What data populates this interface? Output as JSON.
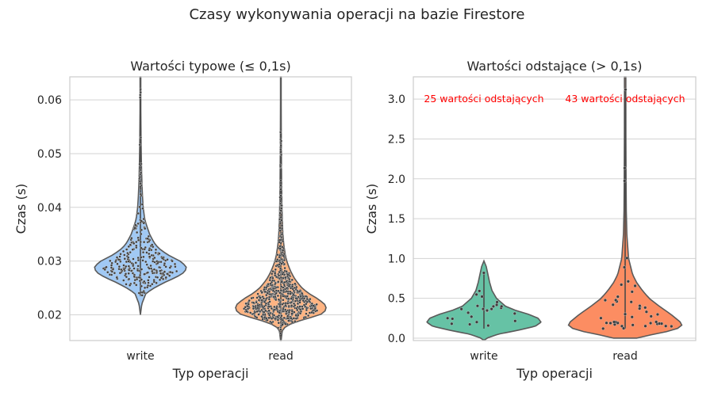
{
  "suptitle": "Czasy wykonywania operacji na bazie Firestore",
  "colors": {
    "write_left": "#a1c9f4",
    "read_left": "#ffb482",
    "write_right": "#66c2a5",
    "read_right": "#fc8d62",
    "points": "#3d3d3d",
    "annotation": "#ff0000",
    "grid": "#d3d3d3",
    "violin_edge": "#5a5a5a"
  },
  "chart_data": [
    {
      "type": "violin",
      "title": "Wartości typowe (≤ 0,1s)",
      "xlabel": "Typ operacji",
      "ylabel": "Czas (s)",
      "categories": [
        "write",
        "read"
      ],
      "ylim": [
        0.0152,
        0.0643
      ],
      "yticks": [
        0.02,
        0.03,
        0.04,
        0.05,
        0.06
      ],
      "ytick_labels": [
        "0.02",
        "0.03",
        "0.04",
        "0.05",
        "0.06"
      ],
      "grid": true,
      "series": [
        {
          "category": "write",
          "n_points": 300,
          "range": [
            0.0235,
            0.062
          ],
          "density": [
            [
              0.02,
              0.0
            ],
            [
              0.022,
              0.03
            ],
            [
              0.024,
              0.12
            ],
            [
              0.025,
              0.3
            ],
            [
              0.026,
              0.52
            ],
            [
              0.027,
              0.78
            ],
            [
              0.028,
              0.97
            ],
            [
              0.029,
              1.0
            ],
            [
              0.03,
              0.86
            ],
            [
              0.031,
              0.63
            ],
            [
              0.032,
              0.45
            ],
            [
              0.033,
              0.33
            ],
            [
              0.034,
              0.26
            ],
            [
              0.035,
              0.2
            ],
            [
              0.036,
              0.16
            ],
            [
              0.037,
              0.12
            ],
            [
              0.038,
              0.09
            ],
            [
              0.04,
              0.06
            ],
            [
              0.042,
              0.045
            ],
            [
              0.044,
              0.035
            ],
            [
              0.046,
              0.028
            ],
            [
              0.048,
              0.022
            ],
            [
              0.05,
              0.018
            ],
            [
              0.052,
              0.014
            ],
            [
              0.055,
              0.011
            ],
            [
              0.058,
              0.008
            ],
            [
              0.0643,
              0.008
            ]
          ]
        },
        {
          "category": "read",
          "n_points": 700,
          "range": [
            0.016,
            0.054
          ],
          "density": [
            [
              0.0152,
              0.006
            ],
            [
              0.017,
              0.03
            ],
            [
              0.018,
              0.12
            ],
            [
              0.019,
              0.45
            ],
            [
              0.02,
              0.86
            ],
            [
              0.021,
              1.0
            ],
            [
              0.022,
              0.95
            ],
            [
              0.023,
              0.8
            ],
            [
              0.024,
              0.6
            ],
            [
              0.025,
              0.46
            ],
            [
              0.026,
              0.36
            ],
            [
              0.027,
              0.28
            ],
            [
              0.028,
              0.22
            ],
            [
              0.029,
              0.17
            ],
            [
              0.03,
              0.13
            ],
            [
              0.031,
              0.1
            ],
            [
              0.033,
              0.065
            ],
            [
              0.035,
              0.045
            ],
            [
              0.038,
              0.03
            ],
            [
              0.041,
              0.022
            ],
            [
              0.045,
              0.016
            ],
            [
              0.05,
              0.012
            ],
            [
              0.055,
              0.009
            ],
            [
              0.06,
              0.007
            ],
            [
              0.0643,
              0.007
            ]
          ]
        }
      ]
    },
    {
      "type": "violin",
      "title": "Wartości odstające (> 0,1s)",
      "xlabel": "Typ operacji",
      "ylabel": "Czas (s)",
      "categories": [
        "write",
        "read"
      ],
      "ylim": [
        -0.03,
        3.28
      ],
      "yticks": [
        0.0,
        0.5,
        1.0,
        1.5,
        2.0,
        2.5,
        3.0
      ],
      "ytick_labels": [
        "0.0",
        "0.5",
        "1.0",
        "1.5",
        "2.0",
        "2.5",
        "3.0"
      ],
      "grid": true,
      "annotations": [
        {
          "category": "write",
          "y": 3.0,
          "text": "25 wartości odstających"
        },
        {
          "category": "read",
          "y": 3.0,
          "text": "43 wartości odstających"
        }
      ],
      "series": [
        {
          "category": "write",
          "n_points": 25,
          "range": [
            0.12,
            0.82
          ],
          "density": [
            [
              -0.02,
              0.02
            ],
            [
              0.0,
              0.05
            ],
            [
              0.05,
              0.25
            ],
            [
              0.1,
              0.6
            ],
            [
              0.15,
              0.9
            ],
            [
              0.2,
              1.0
            ],
            [
              0.25,
              0.95
            ],
            [
              0.3,
              0.78
            ],
            [
              0.35,
              0.55
            ],
            [
              0.4,
              0.38
            ],
            [
              0.5,
              0.22
            ],
            [
              0.6,
              0.14
            ],
            [
              0.7,
              0.1
            ],
            [
              0.8,
              0.07
            ],
            [
              0.9,
              0.04
            ],
            [
              0.97,
              0.0
            ]
          ]
        },
        {
          "category": "read",
          "n_points": 43,
          "range": [
            0.12,
            3.12
          ],
          "density": [
            [
              0.0,
              0.2
            ],
            [
              0.05,
              0.5
            ],
            [
              0.1,
              0.85
            ],
            [
              0.15,
              1.0
            ],
            [
              0.2,
              0.97
            ],
            [
              0.3,
              0.8
            ],
            [
              0.4,
              0.6
            ],
            [
              0.5,
              0.42
            ],
            [
              0.6,
              0.3
            ],
            [
              0.7,
              0.2
            ],
            [
              0.8,
              0.13
            ],
            [
              1.0,
              0.06
            ],
            [
              1.3,
              0.03
            ],
            [
              1.6,
              0.02
            ],
            [
              2.0,
              0.016
            ],
            [
              2.5,
              0.013
            ],
            [
              3.0,
              0.012
            ],
            [
              3.28,
              0.012
            ]
          ]
        }
      ]
    }
  ]
}
